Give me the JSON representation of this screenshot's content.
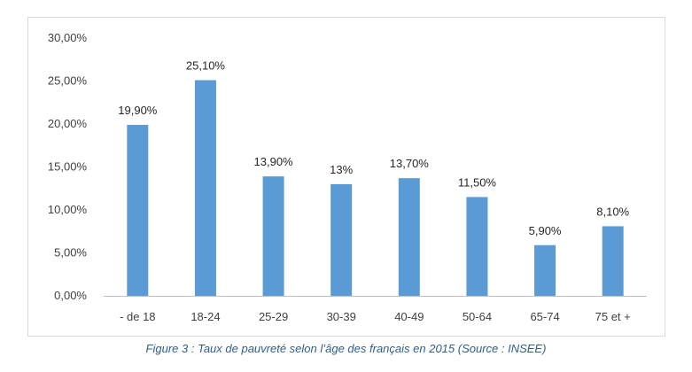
{
  "chart_data": {
    "type": "bar",
    "categories": [
      "- de 18",
      "18-24",
      "25-29",
      "30-39",
      "40-49",
      "50-64",
      "65-74",
      "75 et +"
    ],
    "values": [
      19.9,
      25.1,
      13.9,
      13.0,
      13.7,
      11.5,
      5.9,
      8.1
    ],
    "data_labels": [
      "19,90%",
      "25,10%",
      "13,90%",
      "13%",
      "13,70%",
      "11,50%",
      "5,90%",
      "8,10%"
    ],
    "yticks": [
      "0,00%",
      "5,00%",
      "10,00%",
      "15,00%",
      "20,00%",
      "25,00%",
      "30,00%"
    ],
    "ylim": [
      0,
      30
    ],
    "grid": false,
    "legend": "none",
    "bar_color": "#5b9bd5",
    "axis_color": "#bfbfbf"
  },
  "caption": "Figure 3 : Taux de pauvreté selon l’âge des français en 2015 (Source : INSEE)"
}
